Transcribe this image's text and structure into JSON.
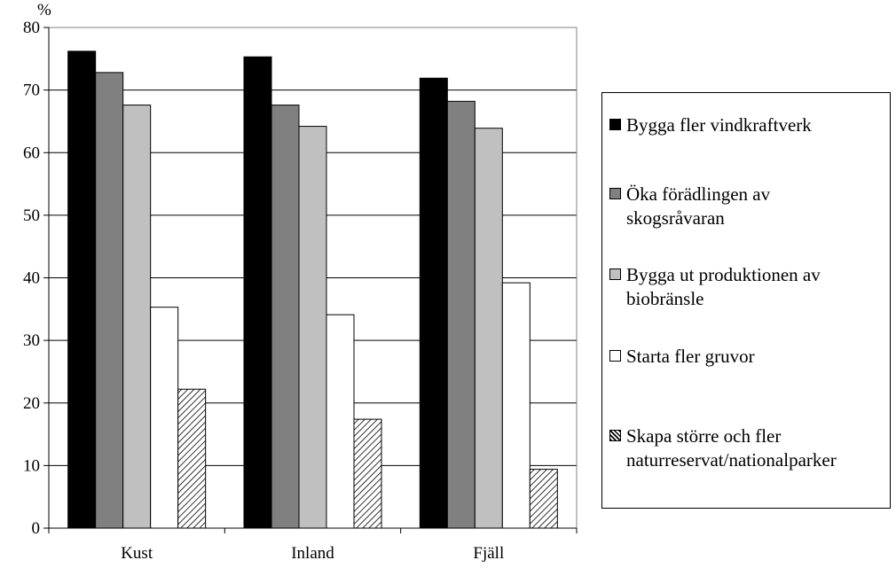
{
  "chart_data": {
    "type": "bar",
    "ylabel": "%",
    "ylim": [
      0,
      80
    ],
    "yticks": [
      0,
      10,
      20,
      30,
      40,
      50,
      60,
      70,
      80
    ],
    "grid": true,
    "legend_position": "right",
    "categories": [
      "Kust",
      "Inland",
      "Fjäll"
    ],
    "series": [
      {
        "name": "Bygga fler vindkraftverk",
        "fill": "#000000",
        "values": [
          76.2,
          75.3,
          71.9
        ]
      },
      {
        "name": "Öka förädlingen av\nskogsråvaran",
        "fill": "#808080",
        "values": [
          72.8,
          67.6,
          68.2
        ]
      },
      {
        "name": "Bygga ut produktionen av\nbiobränsle",
        "fill": "#c0c0c0",
        "values": [
          67.6,
          64.2,
          63.9
        ]
      },
      {
        "name": "Starta fler gruvor",
        "fill": "#ffffff",
        "values": [
          35.3,
          34.1,
          39.2
        ]
      },
      {
        "name": "Skapa större och fler\nnaturreservat/nationalparker",
        "fill": "hatch",
        "values": [
          22.2,
          17.4,
          9.4
        ]
      }
    ]
  }
}
